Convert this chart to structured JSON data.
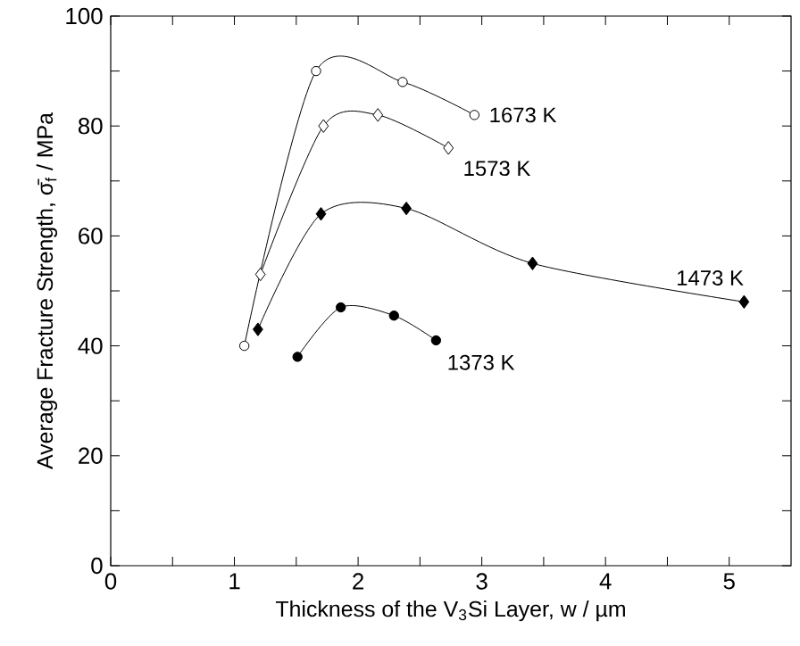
{
  "chart_data": {
    "type": "line",
    "xlabel": "Thickness of the V$_{3}$Si Layer, w / µm",
    "ylabel": "Average Fracture Strength, σ̄$_{f}$ / MPa",
    "xlim": [
      0,
      5.5
    ],
    "ylim": [
      0,
      100
    ],
    "xticks": [
      0,
      {
        "value": 0.5,
        "label": null
      },
      1,
      {
        "value": 1.5,
        "label": null
      },
      2,
      {
        "value": 2.5,
        "label": null
      },
      3,
      {
        "value": 3.5,
        "label": null
      },
      4,
      {
        "value": 4.5,
        "label": null
      },
      5
    ],
    "yticks": [
      0,
      {
        "value": 10,
        "label": null
      },
      20,
      {
        "value": 30,
        "label": null
      },
      40,
      {
        "value": 50,
        "label": null
      },
      60,
      {
        "value": 70,
        "label": null
      },
      80,
      {
        "value": 90,
        "label": null
      },
      100
    ],
    "grid": false,
    "line_style": "solid",
    "series": [
      {
        "name": "1673 K",
        "color": "#ffffff",
        "marker": "circle",
        "x": [
          1.08,
          1.66,
          2.36,
          2.94
        ],
        "values": [
          40,
          90,
          88,
          82
        ]
      },
      {
        "name": "1573 K",
        "color": "#ffffff",
        "marker": "diamond",
        "x": [
          1.21,
          1.72,
          2.16,
          2.73
        ],
        "values": [
          53,
          80,
          82,
          76
        ]
      },
      {
        "name": "1473 K",
        "color": "#000000",
        "marker": "diamond",
        "x": [
          1.19,
          1.7,
          2.39,
          3.41,
          5.12
        ],
        "values": [
          43,
          64,
          65,
          55,
          48
        ]
      },
      {
        "name": "1373 K",
        "color": "#000000",
        "marker": "circle",
        "x": [
          1.51,
          1.86,
          2.29,
          2.63
        ],
        "values": [
          38,
          47,
          45.5,
          41
        ]
      }
    ]
  }
}
